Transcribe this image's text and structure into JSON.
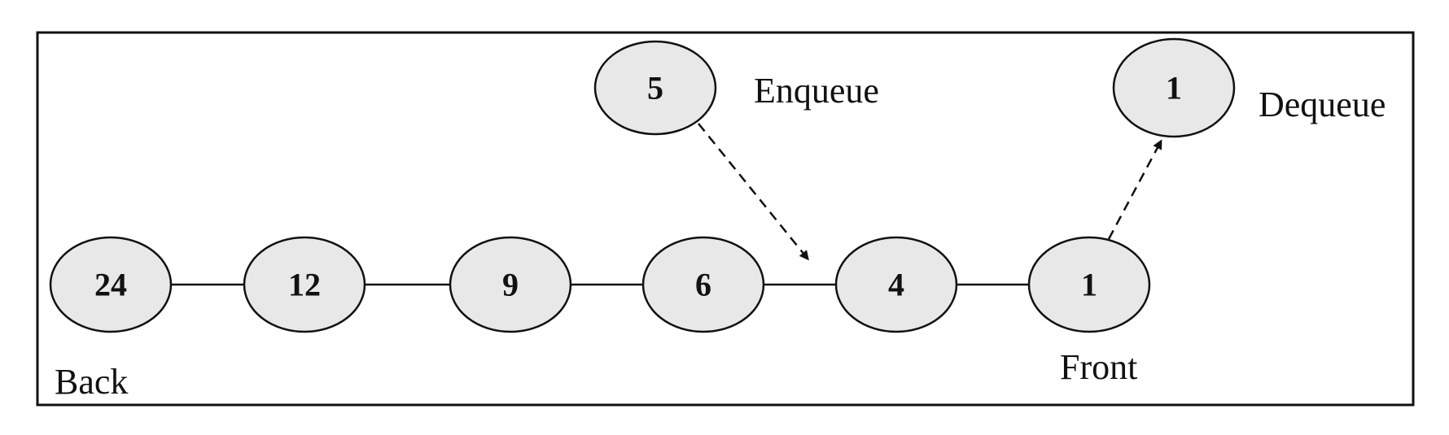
{
  "queue": {
    "nodes": [
      "24",
      "12",
      "9",
      "6",
      "4",
      "1"
    ]
  },
  "enqueue": {
    "value": "5",
    "label": "Enqueue"
  },
  "dequeue": {
    "value": "1",
    "label": "Dequeue"
  },
  "labels": {
    "back": "Back",
    "front": "Front"
  }
}
